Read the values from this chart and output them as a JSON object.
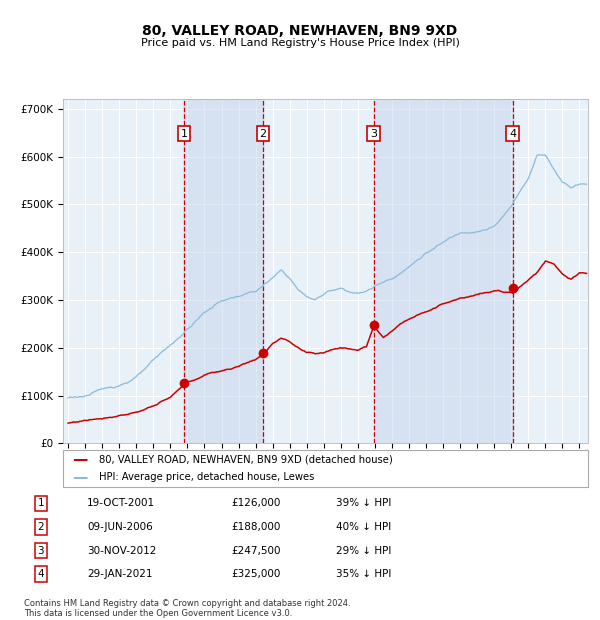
{
  "title": "80, VALLEY ROAD, NEWHAVEN, BN9 9XD",
  "subtitle": "Price paid vs. HM Land Registry's House Price Index (HPI)",
  "ylim": [
    0,
    720000
  ],
  "yticks": [
    0,
    100000,
    200000,
    300000,
    400000,
    500000,
    600000,
    700000
  ],
  "ytick_labels": [
    "£0",
    "£100K",
    "£200K",
    "£300K",
    "£400K",
    "£500K",
    "£600K",
    "£700K"
  ],
  "xlim_start": 1994.7,
  "xlim_end": 2025.5,
  "plot_bg": "#e8f0f8",
  "grid_color": "#ffffff",
  "sale_color": "#cc0000",
  "hpi_color": "#88bbdd",
  "dashed_line_color": "#cc0000",
  "purchases": [
    {
      "label": "1",
      "date_num": 2001.8,
      "price": 126000
    },
    {
      "label": "2",
      "date_num": 2006.44,
      "price": 188000
    },
    {
      "label": "3",
      "date_num": 2012.92,
      "price": 247500
    },
    {
      "label": "4",
      "date_num": 2021.08,
      "price": 325000
    }
  ],
  "legend_line1": "80, VALLEY ROAD, NEWHAVEN, BN9 9XD (detached house)",
  "legend_line2": "HPI: Average price, detached house, Lewes",
  "table_rows": [
    {
      "num": "1",
      "date": "19-OCT-2001",
      "price": "£126,000",
      "hpi": "39% ↓ HPI"
    },
    {
      "num": "2",
      "date": "09-JUN-2006",
      "price": "£188,000",
      "hpi": "40% ↓ HPI"
    },
    {
      "num": "3",
      "date": "30-NOV-2012",
      "price": "£247,500",
      "hpi": "29% ↓ HPI"
    },
    {
      "num": "4",
      "date": "29-JAN-2021",
      "price": "£325,000",
      "hpi": "35% ↓ HPI"
    }
  ],
  "footnote": "Contains HM Land Registry data © Crown copyright and database right 2024.\nThis data is licensed under the Open Government Licence v3.0."
}
